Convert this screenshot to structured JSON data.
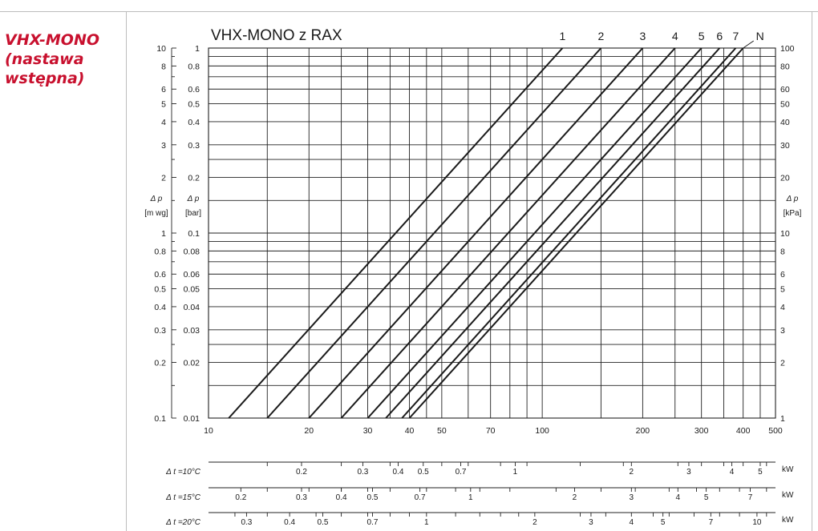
{
  "side_title": [
    "VHX-MONO",
    "(nastawa",
    "wstępna)"
  ],
  "colors": {
    "side_title": "#c8102e",
    "ink": "#1a1a1a",
    "grid": "#222222"
  },
  "chart_data": {
    "type": "line",
    "title": "VHX-MONO z RAX",
    "x_scale": "log",
    "y_scale": "log",
    "xlim": [
      10,
      500
    ],
    "ylim_kpa": [
      1,
      100
    ],
    "grid": true,
    "x_ticks": [
      {
        "v": 10,
        "label": "10"
      },
      {
        "v": 20,
        "label": "20"
      },
      {
        "v": 30,
        "label": "30"
      },
      {
        "v": 40,
        "label": "40"
      },
      {
        "v": 50,
        "label": "50"
      },
      {
        "v": 70,
        "label": "70"
      },
      {
        "v": 100,
        "label": "100"
      },
      {
        "v": 200,
        "label": "200"
      },
      {
        "v": 300,
        "label": "300"
      },
      {
        "v": 400,
        "label": "400"
      },
      {
        "v": 500,
        "label": "500"
      }
    ],
    "x_grid": [
      10,
      15,
      20,
      25,
      30,
      35,
      40,
      45,
      50,
      60,
      70,
      80,
      90,
      100,
      150,
      200,
      250,
      300,
      350,
      400,
      450,
      500
    ],
    "y_grid_kpa": [
      1,
      1.5,
      2,
      2.5,
      3,
      4,
      5,
      6,
      7,
      8,
      9,
      10,
      15,
      20,
      25,
      30,
      40,
      50,
      60,
      70,
      80,
      90,
      100
    ],
    "y_labels_kpa": [
      {
        "v": 100,
        "label": "100"
      },
      {
        "v": 80,
        "label": "80"
      },
      {
        "v": 60,
        "label": "60"
      },
      {
        "v": 50,
        "label": "50"
      },
      {
        "v": 40,
        "label": "40"
      },
      {
        "v": 30,
        "label": "30"
      },
      {
        "v": 20,
        "label": "20"
      },
      {
        "v": 10,
        "label": "10"
      },
      {
        "v": 8,
        "label": "8"
      },
      {
        "v": 6,
        "label": "6"
      },
      {
        "v": 5,
        "label": "5"
      },
      {
        "v": 4,
        "label": "4"
      },
      {
        "v": 3,
        "label": "3"
      },
      {
        "v": 2,
        "label": "2"
      },
      {
        "v": 1,
        "label": "1"
      }
    ],
    "y_labels_bar": [
      {
        "v": 100,
        "label": "1"
      },
      {
        "v": 80,
        "label": "0.8"
      },
      {
        "v": 60,
        "label": "0.6"
      },
      {
        "v": 50,
        "label": "0.5"
      },
      {
        "v": 40,
        "label": "0.4"
      },
      {
        "v": 30,
        "label": "0.3"
      },
      {
        "v": 20,
        "label": "0.2"
      },
      {
        "v": 10,
        "label": "0.1"
      },
      {
        "v": 8,
        "label": "0.08"
      },
      {
        "v": 6,
        "label": "0.06"
      },
      {
        "v": 5,
        "label": "0.05"
      },
      {
        "v": 4,
        "label": "0.04"
      },
      {
        "v": 3,
        "label": "0.03"
      },
      {
        "v": 2,
        "label": "0.02"
      },
      {
        "v": 1,
        "label": "0.01"
      }
    ],
    "y_labels_mwg": [
      {
        "v": 100,
        "label": "10"
      },
      {
        "v": 80,
        "label": "8"
      },
      {
        "v": 60,
        "label": "6"
      },
      {
        "v": 50,
        "label": "5"
      },
      {
        "v": 40,
        "label": "4"
      },
      {
        "v": 30,
        "label": "3"
      },
      {
        "v": 20,
        "label": "2"
      },
      {
        "v": 10,
        "label": "1"
      },
      {
        "v": 8,
        "label": "0.8"
      },
      {
        "v": 6,
        "label": "0.6"
      },
      {
        "v": 5,
        "label": "0.5"
      },
      {
        "v": 4,
        "label": "0.4"
      },
      {
        "v": 3,
        "label": "0.3"
      },
      {
        "v": 2,
        "label": "0.2"
      },
      {
        "v": 1,
        "label": "0.1"
      }
    ],
    "y_minor_mwg": [
      90,
      70,
      25,
      15,
      9,
      7,
      2.5,
      1.5
    ],
    "axis_label_mwg": [
      "Δ p",
      "[m wg]"
    ],
    "axis_label_bar": [
      "Δ p",
      "[bar]"
    ],
    "axis_label_kpa": [
      "Δ p",
      "[kPa]"
    ],
    "series": [
      {
        "name": "1",
        "points": [
          [
            11.5,
            1
          ],
          [
            115,
            100
          ]
        ]
      },
      {
        "name": "2",
        "points": [
          [
            15,
            1
          ],
          [
            150,
            100
          ]
        ]
      },
      {
        "name": "3",
        "points": [
          [
            20,
            1
          ],
          [
            200,
            100
          ]
        ]
      },
      {
        "name": "4",
        "points": [
          [
            25,
            1
          ],
          [
            250,
            100
          ]
        ]
      },
      {
        "name": "5",
        "points": [
          [
            30,
            1
          ],
          [
            300,
            100
          ]
        ]
      },
      {
        "name": "6",
        "points": [
          [
            34,
            1
          ],
          [
            340,
            100
          ]
        ]
      },
      {
        "name": "7",
        "points": [
          [
            38,
            1
          ],
          [
            380,
            100
          ]
        ]
      },
      {
        "name": "N",
        "points": [
          [
            40,
            1
          ],
          [
            400,
            100
          ]
        ]
      }
    ],
    "n_leader": [
      [
        400,
        100
      ],
      [
        430,
        120
      ]
    ],
    "power_scales": [
      {
        "label": "Δ t =10°C",
        "unit": "kW",
        "ticks": [
          {
            "q": 15,
            "label": ""
          },
          {
            "q": 25,
            "label": ""
          },
          {
            "q": 35,
            "label": ""
          },
          {
            "q": 50,
            "label": ""
          },
          {
            "q": 60,
            "label": ""
          },
          {
            "q": 75,
            "label": ""
          },
          {
            "q": 90,
            "label": ""
          },
          {
            "q": 130,
            "label": ""
          },
          {
            "q": 175,
            "label": ""
          },
          {
            "q": 255,
            "label": ""
          },
          {
            "q": 300,
            "label": ""
          },
          {
            "q": 350,
            "label": ""
          },
          {
            "q": 400,
            "label": ""
          },
          {
            "q": 470,
            "label": ""
          }
        ],
        "labels": [
          {
            "q": 19,
            "label": "0.2"
          },
          {
            "q": 29,
            "label": "0.3"
          },
          {
            "q": 37,
            "label": "0.4"
          },
          {
            "q": 44,
            "label": "0.5"
          },
          {
            "q": 57,
            "label": "0.7"
          },
          {
            "q": 83,
            "label": "1"
          },
          {
            "q": 185,
            "label": "2"
          },
          {
            "q": 275,
            "label": "3"
          },
          {
            "q": 370,
            "label": "4"
          },
          {
            "q": 450,
            "label": "5"
          }
        ]
      },
      {
        "label": "Δ t =15°C",
        "unit": "kW",
        "ticks": [
          {
            "q": 15,
            "label": ""
          },
          {
            "q": 20,
            "label": ""
          },
          {
            "q": 25,
            "label": ""
          },
          {
            "q": 30,
            "label": ""
          },
          {
            "q": 35,
            "label": ""
          },
          {
            "q": 45,
            "label": ""
          },
          {
            "q": 55,
            "label": ""
          },
          {
            "q": 65,
            "label": ""
          },
          {
            "q": 80,
            "label": ""
          },
          {
            "q": 110,
            "label": ""
          },
          {
            "q": 150,
            "label": ""
          },
          {
            "q": 190,
            "label": ""
          },
          {
            "q": 240,
            "label": ""
          },
          {
            "q": 290,
            "label": ""
          },
          {
            "q": 340,
            "label": ""
          },
          {
            "q": 390,
            "label": ""
          },
          {
            "q": 470,
            "label": ""
          }
        ],
        "labels": [
          {
            "q": 12.5,
            "label": "0.2"
          },
          {
            "q": 19,
            "label": "0.3"
          },
          {
            "q": 25,
            "label": "0.4"
          },
          {
            "q": 31,
            "label": "0.5"
          },
          {
            "q": 43,
            "label": "0.7"
          },
          {
            "q": 61,
            "label": "1"
          },
          {
            "q": 125,
            "label": "2"
          },
          {
            "q": 185,
            "label": "3"
          },
          {
            "q": 255,
            "label": "4"
          },
          {
            "q": 310,
            "label": "5"
          },
          {
            "q": 420,
            "label": "7"
          }
        ]
      },
      {
        "label": "Δ t =20°C",
        "unit": "kW",
        "ticks": [
          {
            "q": 12,
            "label": ""
          },
          {
            "q": 15,
            "label": ""
          },
          {
            "q": 21,
            "label": ""
          },
          {
            "q": 25,
            "label": ""
          },
          {
            "q": 30,
            "label": ""
          },
          {
            "q": 35,
            "label": ""
          },
          {
            "q": 40,
            "label": ""
          },
          {
            "q": 55,
            "label": ""
          },
          {
            "q": 65,
            "label": ""
          },
          {
            "q": 75,
            "label": ""
          },
          {
            "q": 85,
            "label": ""
          },
          {
            "q": 130,
            "label": ""
          },
          {
            "q": 155,
            "label": ""
          },
          {
            "q": 215,
            "label": ""
          },
          {
            "q": 240,
            "label": ""
          },
          {
            "q": 285,
            "label": ""
          },
          {
            "q": 340,
            "label": ""
          },
          {
            "q": 390,
            "label": ""
          },
          {
            "q": 470,
            "label": ""
          }
        ],
        "labels": [
          {
            "q": 13,
            "label": "0.3"
          },
          {
            "q": 17.5,
            "label": "0.4"
          },
          {
            "q": 22,
            "label": "0.5"
          },
          {
            "q": 31,
            "label": "0.7"
          },
          {
            "q": 45,
            "label": "1"
          },
          {
            "q": 95,
            "label": "2"
          },
          {
            "q": 140,
            "label": "3"
          },
          {
            "q": 185,
            "label": "4"
          },
          {
            "q": 230,
            "label": "5"
          },
          {
            "q": 320,
            "label": "7"
          },
          {
            "q": 440,
            "label": "10"
          }
        ]
      }
    ]
  }
}
